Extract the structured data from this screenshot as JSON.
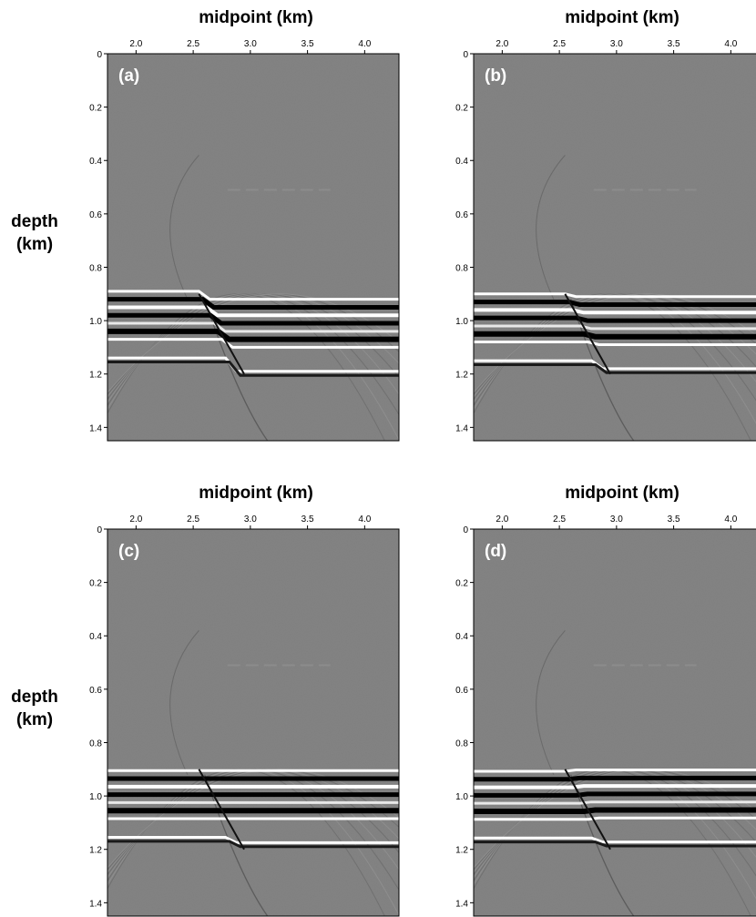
{
  "figure": {
    "xlabel": "midpoint (km)",
    "ylabel_line1": "depth",
    "ylabel_line2": "(km)",
    "x_ticks": [
      "2.0",
      "2.5",
      "3.0",
      "3.5",
      "4.0"
    ],
    "y_ticks": [
      "0",
      "0.2",
      "0.4",
      "0.6",
      "0.8",
      "1.0",
      "1.2",
      "1.4"
    ],
    "x_range_km": [
      1.75,
      4.3
    ],
    "y_range_km": [
      0,
      1.45
    ],
    "colors": {
      "background": "#7f7f7f",
      "dark": "#000000",
      "light": "#ffffff"
    },
    "panels": [
      {
        "label": "(a)",
        "fault_offset_km": 0.05
      },
      {
        "label": "(b)",
        "fault_offset_km": 0.03
      },
      {
        "label": "(c)",
        "fault_offset_km": 0.02
      },
      {
        "label": "(d)",
        "fault_offset_km": 0.015
      }
    ]
  }
}
